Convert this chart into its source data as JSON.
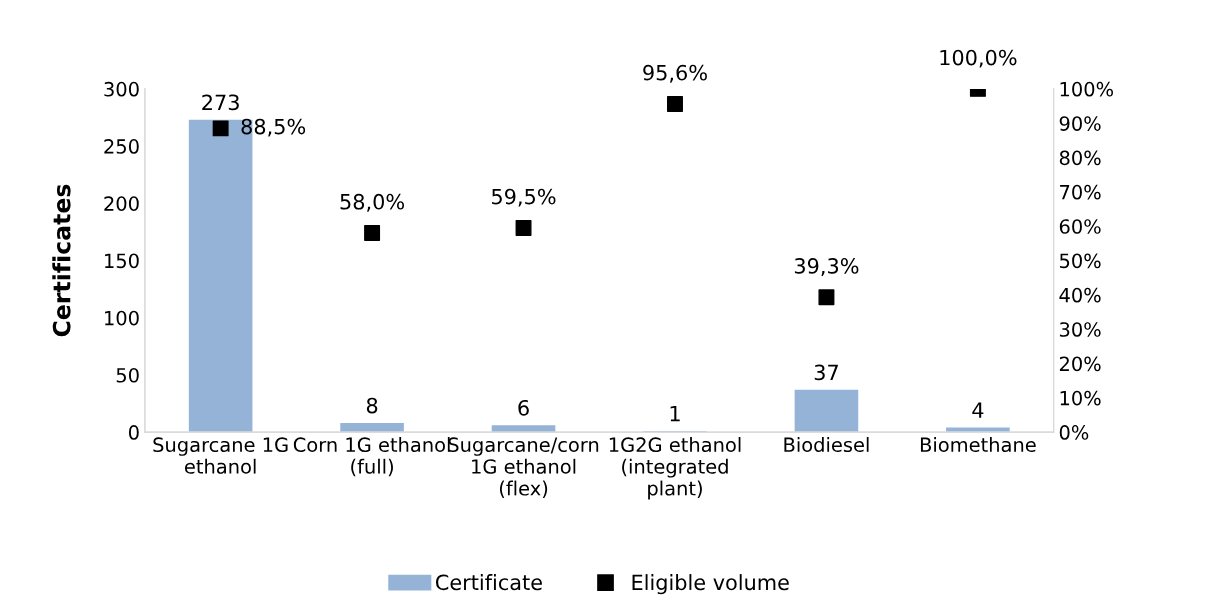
{
  "chart_data": {
    "type": "bar",
    "ylabel": "Certificates",
    "categories": [
      "Sugarcane 1G\nethanol",
      "Corn 1G ethanol\n(full)",
      "Sugarcane/corn\n1G ethanol\n(flex)",
      "1G2G ethanol\n(integrated\nplant)",
      "Biodiesel",
      "Biomethane"
    ],
    "series": [
      {
        "name": "Certificate",
        "color": "#95b3d7",
        "values": [
          273,
          8,
          6,
          1,
          37,
          4
        ],
        "value_labels": [
          "273",
          "8",
          "6",
          "1",
          "37",
          "4"
        ]
      },
      {
        "name": "Eligible volume",
        "type": "scatter",
        "axis": "y2",
        "color": "#000000",
        "marker": "square",
        "values": [
          88.5,
          58.0,
          59.5,
          95.6,
          39.3,
          100.0
        ],
        "value_labels": [
          "88,5%",
          "58,0%",
          "59,5%",
          "95,6%",
          "39,3%",
          "100,0%"
        ]
      }
    ],
    "ylim": [
      0,
      300
    ],
    "yticks": [
      0,
      50,
      100,
      150,
      200,
      250,
      300
    ],
    "y2lim": [
      0,
      100
    ],
    "y2ticks": [
      {
        "value": 0,
        "label": "0%"
      },
      {
        "value": 10,
        "label": "10%"
      },
      {
        "value": 20,
        "label": "20%"
      },
      {
        "value": 30,
        "label": "30%"
      },
      {
        "value": 40,
        "label": "40%"
      },
      {
        "value": 50,
        "label": "50%"
      },
      {
        "value": 60,
        "label": "60%"
      },
      {
        "value": 70,
        "label": "70%"
      },
      {
        "value": 80,
        "label": "80%"
      },
      {
        "value": 90,
        "label": "90%"
      },
      {
        "value": 100,
        "label": "100%"
      }
    ],
    "grid": false,
    "legend": "bottom"
  }
}
